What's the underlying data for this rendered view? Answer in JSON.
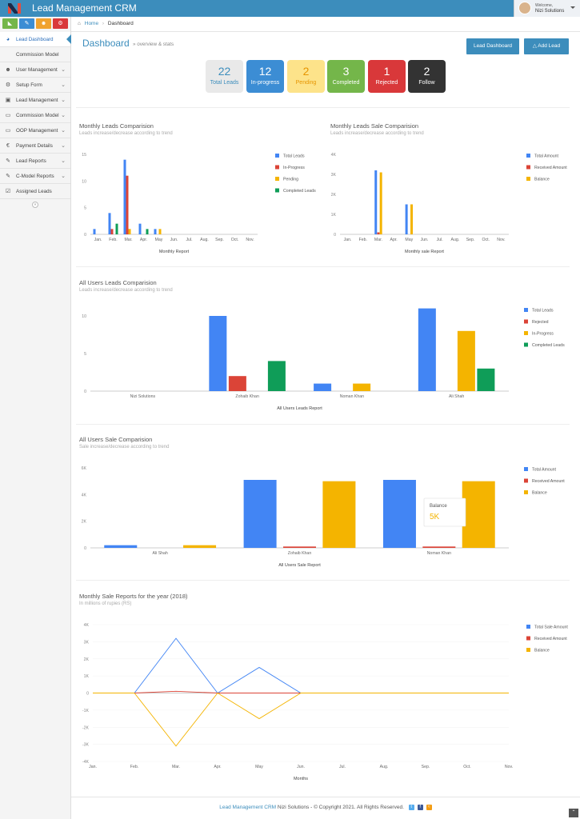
{
  "app": {
    "title": "Lead Management CRM"
  },
  "user": {
    "welcome": "Welcome,",
    "name": "Nizi Solutions"
  },
  "sidebar": {
    "items": [
      {
        "label": "Lead Dashboard",
        "icon": "dashboard-icon"
      },
      {
        "label": "Commission Model",
        "icon": "none"
      },
      {
        "label": "User Management",
        "icon": "users-icon"
      },
      {
        "label": "Setup Form",
        "icon": "gears-icon"
      },
      {
        "label": "Lead Management",
        "icon": "briefcase-icon"
      },
      {
        "label": "Commission Model",
        "icon": "monitor-icon"
      },
      {
        "label": "OOP Management",
        "icon": "monitor-icon"
      },
      {
        "label": "Payment Details",
        "icon": "euro-icon"
      },
      {
        "label": "Lead Reports",
        "icon": "edit-icon"
      },
      {
        "label": "C-Model Reports",
        "icon": "edit-icon"
      },
      {
        "label": "Assigned Leads",
        "icon": "check-square-icon"
      }
    ]
  },
  "breadcrumb": {
    "home": "Home",
    "current": "Dashboard"
  },
  "page": {
    "title": "Dashboard",
    "subtitle": "» overview & stats"
  },
  "buttons": {
    "lead_dashboard": "Lead Dashboard",
    "add_lead": "Add Lead"
  },
  "stats": [
    {
      "num": "22",
      "label": "Total Leads",
      "bg": "#e9e9e9",
      "fg": "#3c8dbc"
    },
    {
      "num": "12",
      "label": "In-progress",
      "bg": "#3c8dd4",
      "fg": "#ffffff"
    },
    {
      "num": "2",
      "label": "Pending",
      "bg": "#fde38a",
      "fg": "#e69500"
    },
    {
      "num": "3",
      "label": "Completed",
      "bg": "#74b64a",
      "fg": "#ffffff"
    },
    {
      "num": "1",
      "label": "Rejected",
      "bg": "#d9383a",
      "fg": "#ffffff"
    },
    {
      "num": "2",
      "label": "Follow",
      "bg": "#333333",
      "fg": "#ffffff"
    }
  ],
  "colors": {
    "blue": "#4285f4",
    "red": "#db4437",
    "yellow": "#f4b400",
    "green": "#0f9d58"
  },
  "chart_data": [
    {
      "type": "bar",
      "title": "Monthly Leads Comparision",
      "subtitle": "Leads increase/decrease according to trend",
      "xlabel": "Monthly Report",
      "categories": [
        "Jan.",
        "Feb.",
        "Mar.",
        "Apr.",
        "May",
        "Jun.",
        "Jul.",
        "Aug.",
        "Sep.",
        "Oct.",
        "Nov."
      ],
      "ylim": [
        0,
        15
      ],
      "yticks": [
        "0",
        "5",
        "10",
        "15"
      ],
      "series": [
        {
          "name": "Total Leads",
          "color": "#4285f4",
          "values": [
            1,
            4,
            14,
            2,
            1,
            0,
            0,
            0,
            0,
            0,
            0
          ]
        },
        {
          "name": "In-Progress",
          "color": "#db4437",
          "values": [
            0,
            1,
            11,
            0,
            0,
            0,
            0,
            0,
            0,
            0,
            0
          ]
        },
        {
          "name": "Pending",
          "color": "#f4b400",
          "values": [
            0,
            0,
            1,
            0,
            1,
            0,
            0,
            0,
            0,
            0,
            0
          ]
        },
        {
          "name": "Completed Leads",
          "color": "#0f9d58",
          "values": [
            0,
            2,
            0,
            1,
            0,
            0,
            0,
            0,
            0,
            0,
            0
          ]
        }
      ],
      "legend": "right"
    },
    {
      "type": "bar",
      "title": "Monthly Leads Sale Comparision",
      "subtitle": "Leads increase/decrease according to trend",
      "xlabel": "Monthly sale Report",
      "categories": [
        "Jan.",
        "Feb.",
        "Mar.",
        "Apr.",
        "May",
        "Jun.",
        "Jul.",
        "Aug.",
        "Sep.",
        "Oct.",
        "Nov."
      ],
      "ylim": [
        0,
        4000
      ],
      "yticks": [
        "0",
        "1K",
        "2K",
        "3K",
        "4K"
      ],
      "series": [
        {
          "name": "Total Amount",
          "color": "#4285f4",
          "values": [
            0,
            0,
            3200,
            0,
            1500,
            0,
            0,
            0,
            0,
            0,
            0
          ]
        },
        {
          "name": "Received Amount",
          "color": "#db4437",
          "values": [
            0,
            0,
            100,
            0,
            0,
            0,
            0,
            0,
            0,
            0,
            0
          ]
        },
        {
          "name": "Balance",
          "color": "#f4b400",
          "values": [
            0,
            0,
            3100,
            0,
            1500,
            0,
            0,
            0,
            0,
            0,
            0
          ]
        }
      ],
      "legend": "right"
    },
    {
      "type": "bar",
      "title": "All Users Leads Comparision",
      "subtitle": "Leads increase/decrease according to trend",
      "xlabel": "All Users Leads Report",
      "categories": [
        "Nizi Solutions",
        "Zohaib Khan",
        "Noman Khan",
        "Ali Shah"
      ],
      "ylim": [
        0,
        10
      ],
      "yticks": [
        "0",
        "5",
        "10"
      ],
      "series": [
        {
          "name": "Total Leads",
          "color": "#4285f4",
          "values": [
            0,
            10,
            1,
            11
          ]
        },
        {
          "name": "Rejected",
          "color": "#db4437",
          "values": [
            0,
            2,
            0,
            0
          ]
        },
        {
          "name": "In-Progress",
          "color": "#f4b400",
          "values": [
            0,
            0,
            1,
            8
          ]
        },
        {
          "name": "Completed Leads",
          "color": "#0f9d58",
          "values": [
            0,
            4,
            0,
            3
          ]
        }
      ],
      "legend": "right"
    },
    {
      "type": "bar",
      "title": "All Users Sale Comparision",
      "subtitle": "Sale increase/decrease according to trend",
      "xlabel": "All Users Sale Report",
      "categories": [
        "Ali Shah",
        "Zohaib Khan",
        "Noman Khan"
      ],
      "ylim": [
        0,
        6000
      ],
      "yticks": [
        "0",
        "2K",
        "4K",
        "6K"
      ],
      "series": [
        {
          "name": "Total Amount",
          "color": "#4285f4",
          "values": [
            200,
            5100,
            5100
          ]
        },
        {
          "name": "Received Amount",
          "color": "#db4437",
          "values": [
            0,
            100,
            100
          ]
        },
        {
          "name": "Balance",
          "color": "#f4b400",
          "values": [
            200,
            5000,
            5000
          ]
        }
      ],
      "tooltip": {
        "label": "Balance",
        "value": "5K"
      },
      "legend": "right"
    },
    {
      "type": "line",
      "title": "Monthly Sale Reports for the year (2018)",
      "subtitle": "In millions of rupies (RS)",
      "xlabel": "Months",
      "categories": [
        "Jan.",
        "Feb.",
        "Mar.",
        "Apr.",
        "May",
        "Jun.",
        "Jul.",
        "Aug.",
        "Sep.",
        "Oct.",
        "Nov."
      ],
      "ylim": [
        -4000,
        4000
      ],
      "yticks": [
        "-4K",
        "-3K",
        "-2K",
        "-1K",
        "0",
        "1K",
        "2K",
        "3K",
        "4K"
      ],
      "series": [
        {
          "name": "Total Sale Amount",
          "color": "#4285f4",
          "values": [
            0,
            0,
            3200,
            0,
            1500,
            0,
            0,
            0,
            0,
            0,
            0
          ]
        },
        {
          "name": "Received Amount",
          "color": "#db4437",
          "values": [
            0,
            0,
            100,
            0,
            0,
            0,
            0,
            0,
            0,
            0,
            0
          ]
        },
        {
          "name": "Balance",
          "color": "#f4b400",
          "values": [
            0,
            0,
            -3100,
            0,
            -1500,
            0,
            0,
            0,
            0,
            0,
            0
          ]
        }
      ],
      "legend": "right"
    }
  ],
  "footer": {
    "brand": "Lead Management CRM",
    "text": " Nizi Solutions - © Copyright 2021. All Rights Reserved."
  }
}
